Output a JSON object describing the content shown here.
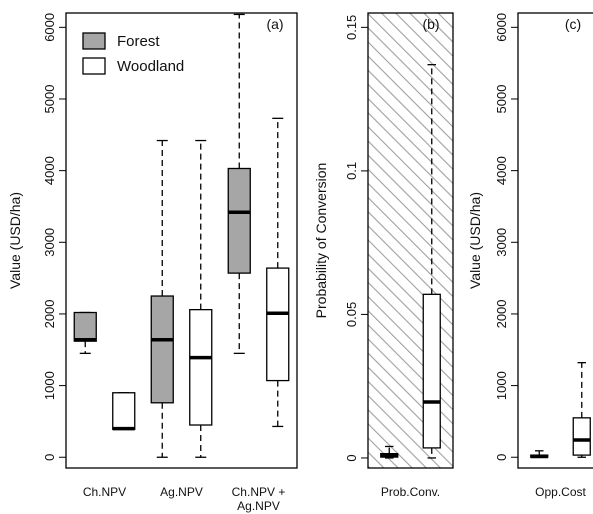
{
  "colors": {
    "forest": "#a6a6a6",
    "woodland": "#ffffff",
    "stroke": "#000000",
    "hatch": "#a0a0a0"
  },
  "chart_data": [
    {
      "id": "a",
      "type": "boxplot",
      "panel_label": "(a)",
      "ylabel": "Value (USD/ha)",
      "ylim": [
        -150,
        6200
      ],
      "yticks": [
        0,
        1000,
        2000,
        3000,
        4000,
        5000,
        6000
      ],
      "ytick_labels": [
        "0",
        "1000",
        "2000",
        "3000",
        "4000",
        "5000",
        "6000"
      ],
      "legend": {
        "position": "top-left",
        "items": [
          {
            "label": "Forest",
            "series": "forest"
          },
          {
            "label": "Woodland",
            "series": "woodland"
          }
        ]
      },
      "categories": [
        {
          "label_lines": [
            "Ch.NPV"
          ],
          "label_center": 1.5
        },
        {
          "label_lines": [
            "Ag.NPV"
          ],
          "label_center": 3.5
        },
        {
          "label_lines": [
            "Ch.NPV +",
            "Ag.NPV"
          ],
          "label_center": 5.5
        }
      ],
      "xlim": [
        0.5,
        6.5
      ],
      "boxes": [
        {
          "category": "Ch.NPV",
          "series": "forest",
          "pos": 1,
          "min": 1450,
          "q1": 1620,
          "median": 1640,
          "q3": 2020,
          "max": 2020
        },
        {
          "category": "Ch.NPV",
          "series": "woodland",
          "pos": 2,
          "min": 390,
          "q1": 390,
          "median": 400,
          "q3": 900,
          "max": 900
        },
        {
          "category": "Ag.NPV",
          "series": "forest",
          "pos": 3,
          "min": 0,
          "q1": 760,
          "median": 1640,
          "q3": 2250,
          "max": 4420
        },
        {
          "category": "Ag.NPV",
          "series": "woodland",
          "pos": 4,
          "min": 0,
          "q1": 450,
          "median": 1390,
          "q3": 2060,
          "max": 4420
        },
        {
          "category": "Ch.NPV + Ag.NPV",
          "series": "forest",
          "pos": 5,
          "min": 1450,
          "q1": 2570,
          "median": 3420,
          "q3": 4030,
          "max": 6180
        },
        {
          "category": "Ch.NPV + Ag.NPV",
          "series": "woodland",
          "pos": 6,
          "min": 430,
          "q1": 1070,
          "median": 2010,
          "q3": 2640,
          "max": 4730
        }
      ]
    },
    {
      "id": "b",
      "type": "boxplot",
      "panel_label": "(b)",
      "ylabel": "Probability of Conversion",
      "ylim": [
        -0.0035,
        0.155
      ],
      "yticks": [
        0,
        0.05,
        0.1,
        0.15
      ],
      "ytick_labels": [
        "0",
        "0.05",
        "0.1",
        "0.15"
      ],
      "hatched_background": true,
      "categories": [
        {
          "label_lines": [
            "Prob.Conv."
          ],
          "label_center": 1.5
        }
      ],
      "xlim": [
        0.5,
        2.5
      ],
      "boxes": [
        {
          "category": "Prob.Conv.",
          "series": "forest",
          "pos": 1,
          "min": 0,
          "q1": 0.0003,
          "median": 0.0008,
          "q3": 0.0015,
          "max": 0.004
        },
        {
          "category": "Prob.Conv.",
          "series": "woodland",
          "pos": 2,
          "min": 0,
          "q1": 0.0035,
          "median": 0.0195,
          "q3": 0.057,
          "max": 0.137
        }
      ]
    },
    {
      "id": "c",
      "type": "boxplot",
      "panel_label": "(c)",
      "ylabel": "Value (USD/ha)",
      "ylim": [
        -150,
        6200
      ],
      "yticks": [
        0,
        1000,
        2000,
        3000,
        4000,
        5000,
        6000
      ],
      "ytick_labels": [
        "0",
        "1000",
        "2000",
        "3000",
        "4000",
        "5000",
        "6000"
      ],
      "categories": [
        {
          "label_lines": [
            "Opp.Cost"
          ],
          "label_center": 1.5
        }
      ],
      "xlim": [
        0.5,
        2.5
      ],
      "boxes": [
        {
          "category": "Opp.Cost",
          "series": "forest",
          "pos": 1,
          "min": 0,
          "q1": 0,
          "median": 10,
          "q3": 30,
          "max": 90
        },
        {
          "category": "Opp.Cost",
          "series": "woodland",
          "pos": 2,
          "min": 0,
          "q1": 30,
          "median": 240,
          "q3": 550,
          "max": 1320
        }
      ]
    }
  ]
}
